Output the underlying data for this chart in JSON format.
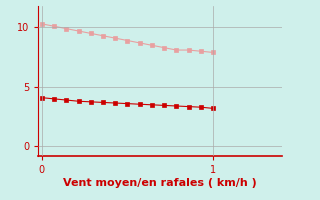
{
  "background_color": "#cff0eb",
  "line1_x": [
    0,
    0.0714,
    0.1429,
    0.2143,
    0.2857,
    0.3571,
    0.4286,
    0.5,
    0.5714,
    0.6429,
    0.7143,
    0.7857,
    0.8571,
    0.9286,
    1.0
  ],
  "line1_y": [
    10.3,
    10.1,
    9.9,
    9.7,
    9.5,
    9.3,
    9.1,
    8.9,
    8.7,
    8.5,
    8.3,
    8.1,
    8.1,
    8.0,
    7.9
  ],
  "line1_color": "#e8a0a0",
  "line2_x": [
    0,
    0.0714,
    0.1429,
    0.2143,
    0.2857,
    0.3571,
    0.4286,
    0.5,
    0.5714,
    0.6429,
    0.7143,
    0.7857,
    0.8571,
    0.9286,
    1.0
  ],
  "line2_y": [
    4.1,
    4.0,
    3.9,
    3.8,
    3.75,
    3.7,
    3.65,
    3.6,
    3.55,
    3.5,
    3.45,
    3.4,
    3.35,
    3.3,
    3.2
  ],
  "line2_color": "#cc0000",
  "xlabel": "Vent moyen/en rafales ( km/h )",
  "xlabel_color": "#cc0000",
  "xlabel_fontsize": 8,
  "xlim": [
    -0.02,
    1.4
  ],
  "ylim": [
    -0.8,
    11.8
  ],
  "yticks": [
    0,
    5,
    10
  ],
  "xticks": [
    0,
    1
  ],
  "tick_color": "#cc0000",
  "grid_color": "#aaaaaa",
  "spine_color": "#cc0000",
  "marker": "s",
  "markersize": 2.5
}
